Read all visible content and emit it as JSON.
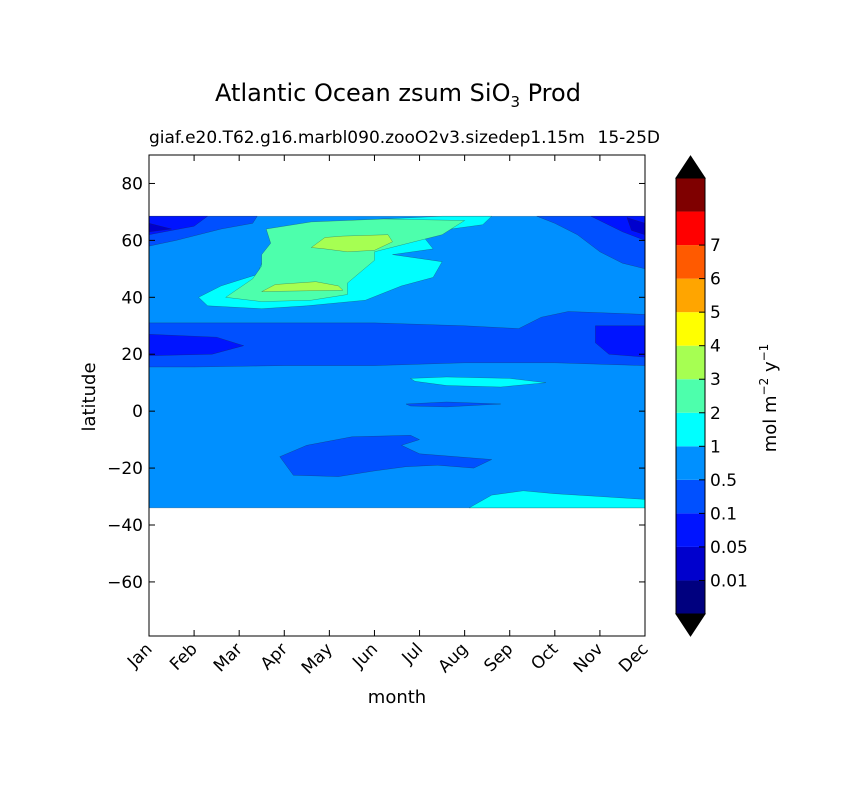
{
  "chart_data": {
    "type": "contourf",
    "title_main": "Atlantic Ocean zsum SiO",
    "title_sub": "3",
    "title_tail": " Prod",
    "subtitle_left": "giaf.e20.T62.g16.marbl090.zooO2v3.sizedep1.15m",
    "subtitle_right": "15-25D",
    "xlabel": "month",
    "ylabel": "latitude",
    "x_tick_labels": [
      "Jan",
      "Feb",
      "Mar",
      "Apr",
      "May",
      "Jun",
      "Jul",
      "Aug",
      "Sep",
      "Oct",
      "Nov",
      "Dec"
    ],
    "xlim": [
      0,
      11
    ],
    "ylim": [
      -79,
      90
    ],
    "y_ticks": [
      80,
      60,
      40,
      20,
      0,
      -20,
      -40,
      -60
    ],
    "y_tick_labels": [
      "80",
      "60",
      "40",
      "20",
      "0",
      "−20",
      "−40",
      "−60"
    ],
    "data_lat_range": [
      -34,
      68.5
    ],
    "colorbar": {
      "label_main": "mol m",
      "label_exp1": "−2",
      "label_mid": " y",
      "label_exp2": "−1",
      "levels": [
        "0.01",
        "0.05",
        "0.1",
        "0.5",
        "1",
        "2",
        "3",
        "4",
        "5",
        "6",
        "7"
      ],
      "colors": [
        "#00007f",
        "#0000cd",
        "#0014ff",
        "#0050ff",
        "#0090ff",
        "#00ffff",
        "#4dffac",
        "#a6ff52",
        "#ffff00",
        "#ffa500",
        "#ff5a00",
        "#ff0000",
        "#7f0000"
      ],
      "extend_low_color": "#000000",
      "extend_high_color": "#000000"
    },
    "regions": [
      {
        "level": 4,
        "color": "#0090ff",
        "desc": "background 0.1-0.5",
        "poly": [
          [
            0,
            68.5
          ],
          [
            11,
            68.5
          ],
          [
            11,
            -34
          ],
          [
            0,
            -34
          ]
        ]
      },
      {
        "level": 3,
        "color": "#0050ff",
        "desc": "north band",
        "poly": [
          [
            0,
            68.5
          ],
          [
            2.4,
            68.5
          ],
          [
            2.3,
            66
          ],
          [
            1.6,
            64
          ],
          [
            0.6,
            60
          ],
          [
            0,
            58
          ]
        ]
      },
      {
        "level": 3,
        "color": "#0050ff",
        "desc": "north east",
        "poly": [
          [
            8.6,
            68.5
          ],
          [
            11,
            68.5
          ],
          [
            11,
            50
          ],
          [
            10.5,
            52
          ],
          [
            10,
            56
          ],
          [
            9.5,
            62
          ],
          [
            9,
            66
          ]
        ]
      },
      {
        "level": 3,
        "color": "#0050ff",
        "desc": "subtropical band",
        "poly": [
          [
            0,
            31
          ],
          [
            5,
            31
          ],
          [
            7,
            30
          ],
          [
            8.2,
            29
          ],
          [
            8.7,
            33
          ],
          [
            9.3,
            35
          ],
          [
            11,
            34
          ],
          [
            11,
            16
          ],
          [
            9,
            17
          ],
          [
            7,
            17
          ],
          [
            5,
            16
          ],
          [
            3,
            16
          ],
          [
            1,
            15.5
          ],
          [
            0,
            15.5
          ]
        ]
      },
      {
        "level": 3,
        "color": "#0050ff",
        "desc": "south blob",
        "poly": [
          [
            2.9,
            -16
          ],
          [
            3.5,
            -12
          ],
          [
            4.5,
            -9
          ],
          [
            5.8,
            -8.5
          ],
          [
            6,
            -10
          ],
          [
            5.6,
            -12
          ],
          [
            6,
            -15
          ],
          [
            7.6,
            -17
          ],
          [
            7.2,
            -20
          ],
          [
            6.4,
            -19
          ],
          [
            5.7,
            -19.5
          ],
          [
            5,
            -21
          ],
          [
            4.2,
            -23
          ],
          [
            3.2,
            -22.5
          ]
        ]
      },
      {
        "level": 3,
        "color": "#0050ff",
        "desc": "equatorial sliver",
        "poly": [
          [
            5.7,
            2.5
          ],
          [
            6.6,
            3.2
          ],
          [
            7.8,
            2.5
          ],
          [
            6.6,
            1.5
          ],
          [
            5.8,
            1.8
          ]
        ]
      },
      {
        "level": 2,
        "color": "#0014ff",
        "desc": "north deep",
        "poly": [
          [
            0,
            68.5
          ],
          [
            1.3,
            68.5
          ],
          [
            1,
            65
          ],
          [
            0,
            62
          ]
        ]
      },
      {
        "level": 2,
        "color": "#0014ff",
        "desc": "north east deep",
        "poly": [
          [
            9.8,
            68.5
          ],
          [
            11,
            68.5
          ],
          [
            11,
            60
          ],
          [
            10.5,
            63
          ]
        ]
      },
      {
        "level": 2,
        "color": "#0014ff",
        "desc": "subtropical deep west",
        "poly": [
          [
            0,
            27
          ],
          [
            1.5,
            26
          ],
          [
            2.1,
            23
          ],
          [
            1.4,
            20
          ],
          [
            0,
            19.5
          ]
        ]
      },
      {
        "level": 2,
        "color": "#0014ff",
        "desc": "subtropical deep east",
        "poly": [
          [
            9.9,
            30
          ],
          [
            11,
            30
          ],
          [
            11,
            19
          ],
          [
            10.2,
            20
          ],
          [
            9.9,
            24
          ]
        ]
      },
      {
        "level": 1,
        "color": "#0000cd",
        "desc": "north darkest",
        "poly": [
          [
            0,
            66
          ],
          [
            0.5,
            64
          ],
          [
            0,
            63
          ]
        ]
      },
      {
        "level": 1,
        "color": "#0000cd",
        "desc": "north east darkest",
        "poly": [
          [
            10.6,
            68
          ],
          [
            11,
            66
          ],
          [
            11,
            62
          ],
          [
            10.7,
            63.5
          ]
        ]
      },
      {
        "level": 5,
        "color": "#00ffff",
        "desc": "north bloom",
        "poly": [
          [
            1.1,
            40
          ],
          [
            1.6,
            44
          ],
          [
            2.4,
            48
          ],
          [
            2.5,
            52
          ],
          [
            2.7,
            57
          ],
          [
            3.0,
            61
          ],
          [
            2.8,
            64
          ],
          [
            3.8,
            66
          ],
          [
            4.5,
            67
          ],
          [
            6.5,
            68.5
          ],
          [
            7.6,
            68.5
          ],
          [
            7.4,
            65.5
          ],
          [
            6.7,
            64
          ],
          [
            6.1,
            61
          ],
          [
            6.3,
            57
          ],
          [
            5.4,
            55
          ],
          [
            6.5,
            52.5
          ],
          [
            6.3,
            47
          ],
          [
            5.6,
            44
          ],
          [
            4.8,
            39
          ],
          [
            3.5,
            37
          ],
          [
            2.5,
            36
          ],
          [
            1.3,
            37
          ]
        ]
      },
      {
        "level": 5,
        "color": "#00ffff",
        "desc": "equatorial bloom",
        "poly": [
          [
            5.8,
            11.5
          ],
          [
            6.6,
            12
          ],
          [
            8,
            11.5
          ],
          [
            8.8,
            10
          ],
          [
            7.8,
            8.5
          ],
          [
            6.6,
            9
          ],
          [
            5.9,
            10.5
          ]
        ]
      },
      {
        "level": 5,
        "color": "#00ffff",
        "desc": "south bloom",
        "poly": [
          [
            7.1,
            -34
          ],
          [
            7.6,
            -29.5
          ],
          [
            8.3,
            -28
          ],
          [
            9,
            -29
          ],
          [
            10,
            -30
          ],
          [
            11,
            -31
          ],
          [
            11,
            -34
          ]
        ]
      },
      {
        "level": 6,
        "color": "#4dffac",
        "desc": "green bloom",
        "poly": [
          [
            1.7,
            40
          ],
          [
            2.3,
            46.5
          ],
          [
            2.5,
            51
          ],
          [
            2.5,
            55
          ],
          [
            2.7,
            59
          ],
          [
            2.6,
            64
          ],
          [
            3.6,
            66.5
          ],
          [
            5.2,
            67.5
          ],
          [
            7,
            67
          ],
          [
            6.5,
            62
          ],
          [
            6,
            60
          ],
          [
            5,
            56
          ],
          [
            5,
            53
          ],
          [
            4.7,
            49
          ],
          [
            4.4,
            45
          ],
          [
            4.4,
            41
          ],
          [
            3.6,
            39
          ],
          [
            2.5,
            38.5
          ]
        ]
      },
      {
        "level": 7,
        "color": "#a6ff52",
        "desc": "yellow-green patch upper",
        "poly": [
          [
            3.6,
            57.5
          ],
          [
            3.9,
            61
          ],
          [
            4.3,
            61.5
          ],
          [
            5.3,
            62
          ],
          [
            5.4,
            59.5
          ],
          [
            5,
            56.5
          ],
          [
            4.4,
            56
          ],
          [
            3.9,
            57
          ]
        ]
      },
      {
        "level": 7,
        "color": "#a6ff52",
        "desc": "yellow-green patch lower",
        "poly": [
          [
            2.5,
            42
          ],
          [
            2.8,
            44.5
          ],
          [
            3.7,
            45.5
          ],
          [
            4.2,
            44
          ],
          [
            4.3,
            42.5
          ],
          [
            3.5,
            42.3
          ]
        ]
      }
    ]
  }
}
